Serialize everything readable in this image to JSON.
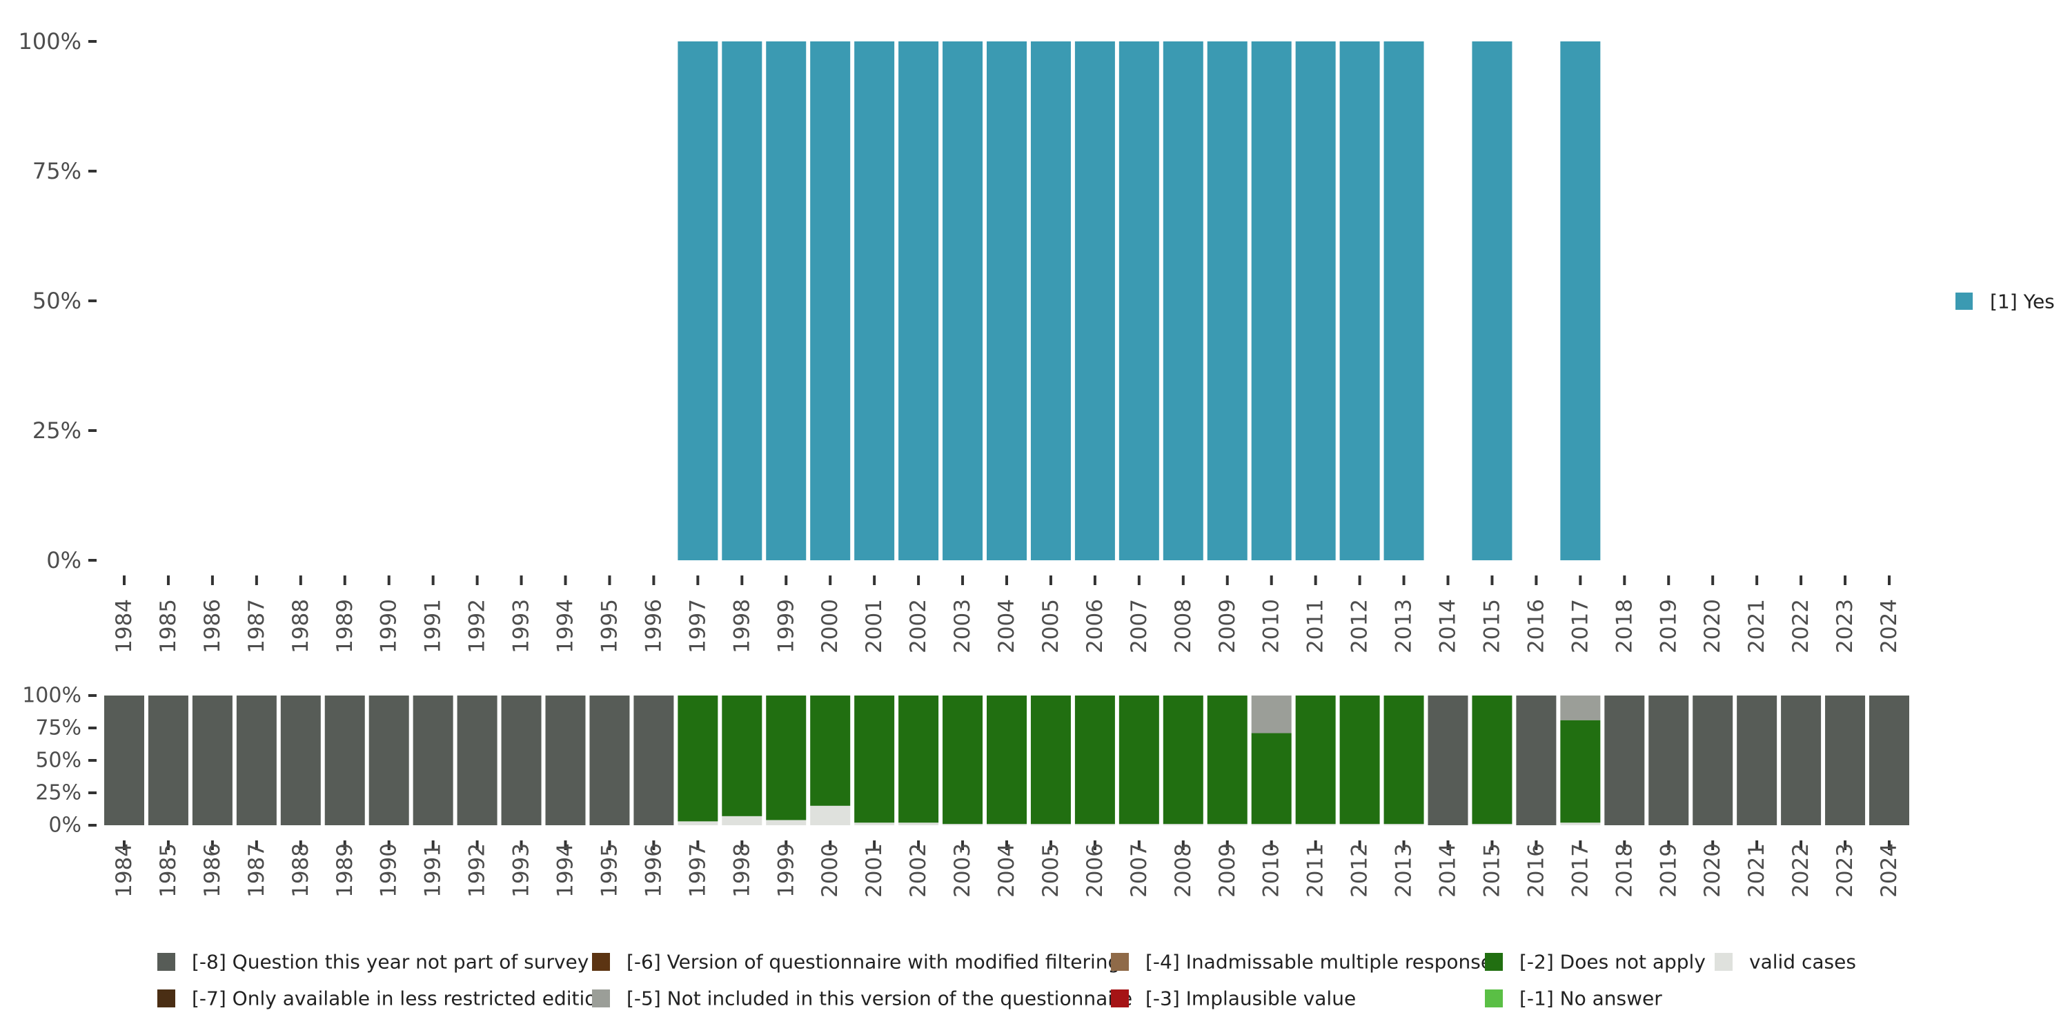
{
  "chart_data": [
    {
      "type": "bar",
      "stacked": true,
      "y_tick_labels": [
        "0%",
        "25%",
        "50%",
        "75%",
        "100%"
      ],
      "ylim": [
        0,
        100
      ],
      "categories": [
        "1984",
        "1985",
        "1986",
        "1987",
        "1988",
        "1989",
        "1990",
        "1991",
        "1992",
        "1993",
        "1994",
        "1995",
        "1996",
        "1997",
        "1998",
        "1999",
        "2000",
        "2001",
        "2002",
        "2003",
        "2004",
        "2005",
        "2006",
        "2007",
        "2008",
        "2009",
        "2010",
        "2011",
        "2012",
        "2013",
        "2014",
        "2015",
        "2016",
        "2017",
        "2018",
        "2019",
        "2020",
        "2021",
        "2022",
        "2023",
        "2024"
      ],
      "series": [
        {
          "name": "[1] Yes",
          "color": "#3b9ab2",
          "values": [
            0,
            0,
            0,
            0,
            0,
            0,
            0,
            0,
            0,
            0,
            0,
            0,
            0,
            100,
            100,
            100,
            100,
            100,
            100,
            100,
            100,
            100,
            100,
            100,
            100,
            100,
            100,
            100,
            100,
            100,
            0,
            100,
            0,
            100,
            0,
            0,
            0,
            0,
            0,
            0,
            0
          ]
        }
      ],
      "legend": {
        "position": "right",
        "items": [
          {
            "label": "[1] Yes",
            "color": "#3b9ab2"
          }
        ]
      }
    },
    {
      "type": "bar",
      "stacked": true,
      "y_tick_labels": [
        "0%",
        "25%",
        "50%",
        "75%",
        "100%"
      ],
      "ylim": [
        0,
        100
      ],
      "categories": [
        "1984",
        "1985",
        "1986",
        "1987",
        "1988",
        "1989",
        "1990",
        "1991",
        "1992",
        "1993",
        "1994",
        "1995",
        "1996",
        "1997",
        "1998",
        "1999",
        "2000",
        "2001",
        "2002",
        "2003",
        "2004",
        "2005",
        "2006",
        "2007",
        "2008",
        "2009",
        "2010",
        "2011",
        "2012",
        "2013",
        "2014",
        "2015",
        "2016",
        "2017",
        "2018",
        "2019",
        "2020",
        "2021",
        "2022",
        "2023",
        "2024"
      ],
      "series": [
        {
          "name": "valid cases",
          "color": "#dfe1dd",
          "values": [
            0,
            0,
            0,
            0,
            0,
            0,
            0,
            0,
            0,
            0,
            0,
            0,
            0,
            3,
            7,
            4,
            15,
            2,
            2,
            1,
            1,
            1,
            1,
            1,
            1,
            1,
            1,
            1,
            1,
            1,
            0,
            1,
            0,
            2,
            0,
            0,
            0,
            0,
            0,
            0,
            0
          ]
        },
        {
          "name": "[-2] Does not apply",
          "color": "#216f11",
          "values": [
            0,
            0,
            0,
            0,
            0,
            0,
            0,
            0,
            0,
            0,
            0,
            0,
            0,
            97,
            93,
            96,
            85,
            98,
            98,
            99,
            99,
            99,
            99,
            99,
            99,
            99,
            70,
            99,
            99,
            99,
            0,
            99,
            0,
            79,
            0,
            0,
            0,
            0,
            0,
            0,
            0
          ]
        },
        {
          "name": "[-5] Not included in this version of the questionnaire",
          "color": "#9b9e98",
          "values": [
            0,
            0,
            0,
            0,
            0,
            0,
            0,
            0,
            0,
            0,
            0,
            0,
            0,
            0,
            0,
            0,
            0,
            0,
            0,
            0,
            0,
            0,
            0,
            0,
            0,
            0,
            29,
            0,
            0,
            0,
            0,
            0,
            0,
            19,
            0,
            0,
            0,
            0,
            0,
            0,
            0
          ]
        },
        {
          "name": "[-8] Question this year not part of survey",
          "color": "#575c57",
          "values": [
            100,
            100,
            100,
            100,
            100,
            100,
            100,
            100,
            100,
            100,
            100,
            100,
            100,
            0,
            0,
            0,
            0,
            0,
            0,
            0,
            0,
            0,
            0,
            0,
            0,
            0,
            0,
            0,
            0,
            0,
            100,
            0,
            100,
            0,
            100,
            100,
            100,
            100,
            100,
            100,
            100
          ]
        }
      ]
    }
  ],
  "legend_bottom": [
    {
      "label": "[-8] Question this year not part of survey",
      "color": "#575c57"
    },
    {
      "label": "[-6] Version of questionnaire with modified filtering",
      "color": "#5c3412"
    },
    {
      "label": "[-4] Inadmissable multiple response",
      "color": "#8f6a48"
    },
    {
      "label": "[-2] Does not apply",
      "color": "#216f11"
    },
    {
      "label": "valid cases",
      "color": "#dfe1dd"
    },
    {
      "label": "[-7] Only available in less restricted edition",
      "color": "#4a2e14"
    },
    {
      "label": "[-5] Not included in this version of the questionnaire",
      "color": "#9b9e98"
    },
    {
      "label": "[-3] Implausible value",
      "color": "#a51416"
    },
    {
      "label": "[-1] No answer",
      "color": "#5abf45"
    }
  ]
}
